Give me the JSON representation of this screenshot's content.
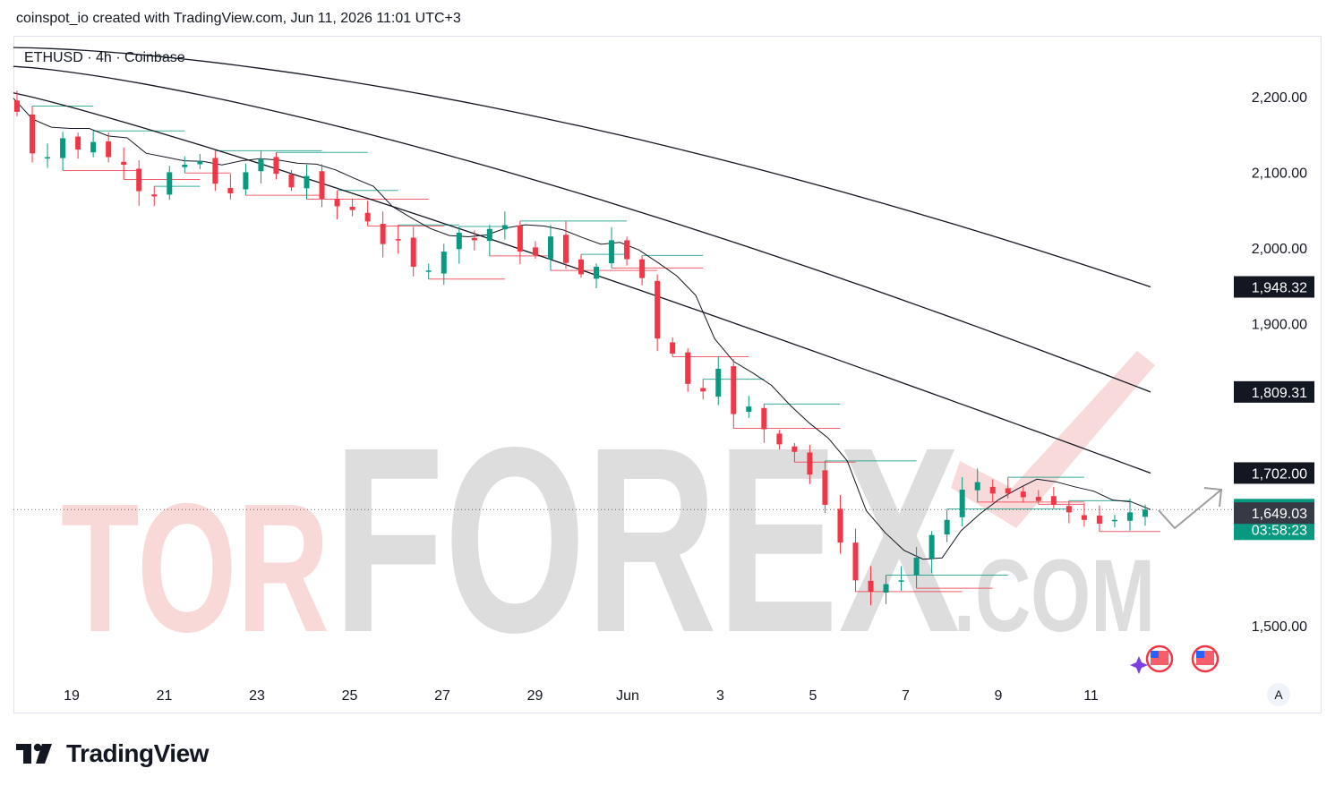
{
  "header": {
    "caption": "coinspot_io created with TradingView.com, Jun 11, 2026 11:01 UTC+3"
  },
  "symbol_label": "ETHUSD · 4h · Coinbase",
  "watermark": {
    "part1": "TOR",
    "part2": "FOREX",
    "part3": ".COM"
  },
  "footer": {
    "brand": "TradingView"
  },
  "auto_scale_label": "A",
  "colors": {
    "up": "#089981",
    "down": "#f23645",
    "ma": "#131722",
    "price_line": "#089981",
    "watermark_red": "#f5c2c2",
    "watermark_grey": "#d6d6d6"
  },
  "chart_data": {
    "type": "candlestick",
    "timeframe": "4h",
    "symbol": "ETHUSD",
    "exchange": "Coinbase",
    "y_axis": {
      "ticks": [
        2200,
        2100,
        2000,
        1900,
        1500
      ],
      "tick_labels": [
        "2,200.00",
        "2,100.00",
        "2,000.00",
        "1,900.00",
        "1,500.00"
      ],
      "range": [
        1452,
        2250
      ]
    },
    "x_axis": {
      "ticks": [
        "19",
        "21",
        "23",
        "25",
        "27",
        "29",
        "Jun",
        "3",
        "5",
        "7",
        "9",
        "11"
      ]
    },
    "moving_averages_last": [
      1948.32,
      1809.31,
      1702.0,
      1653.68
    ],
    "price_labels": [
      {
        "value": "1,948.32",
        "style": "dark"
      },
      {
        "value": "1,809.31",
        "style": "dark"
      },
      {
        "value": "1,702.00",
        "style": "dark"
      },
      {
        "value": "1,653.68",
        "style": "green",
        "countdown": "03:58:23"
      },
      {
        "value": "1,649.03",
        "style": "grey"
      }
    ],
    "last_price": 1653.68,
    "candle_countdown": "03:58:23",
    "close_path": [
      2180,
      2125,
      2120,
      2145,
      2130,
      2140,
      2120,
      2110,
      2075,
      2068,
      2100,
      2110,
      2115,
      2085,
      2072,
      2100,
      2118,
      2098,
      2080,
      2095,
      2065,
      2055,
      2050,
      2035,
      2005,
      2010,
      1975,
      1970,
      1995,
      2020,
      2010,
      2025,
      2030,
      1995,
      1990,
      2015,
      1980,
      1965,
      1975,
      2010,
      1985,
      1960,
      1880,
      1860,
      1820,
      1810,
      1840,
      1780,
      1790,
      1760,
      1740,
      1730,
      1700,
      1660,
      1610,
      1560,
      1545,
      1555,
      1560,
      1590,
      1620,
      1640,
      1680,
      1690,
      1675,
      1675,
      1670,
      1665,
      1660,
      1650,
      1640,
      1635,
      1640,
      1650,
      1653.68
    ],
    "moving_average_paths": [
      {
        "start": 2265,
        "end": 1948.32
      },
      {
        "start": 2240,
        "end": 1809.31
      },
      {
        "start": 2205,
        "end": 1702.0
      },
      {
        "start": 2190,
        "end": 1653.68
      }
    ]
  }
}
